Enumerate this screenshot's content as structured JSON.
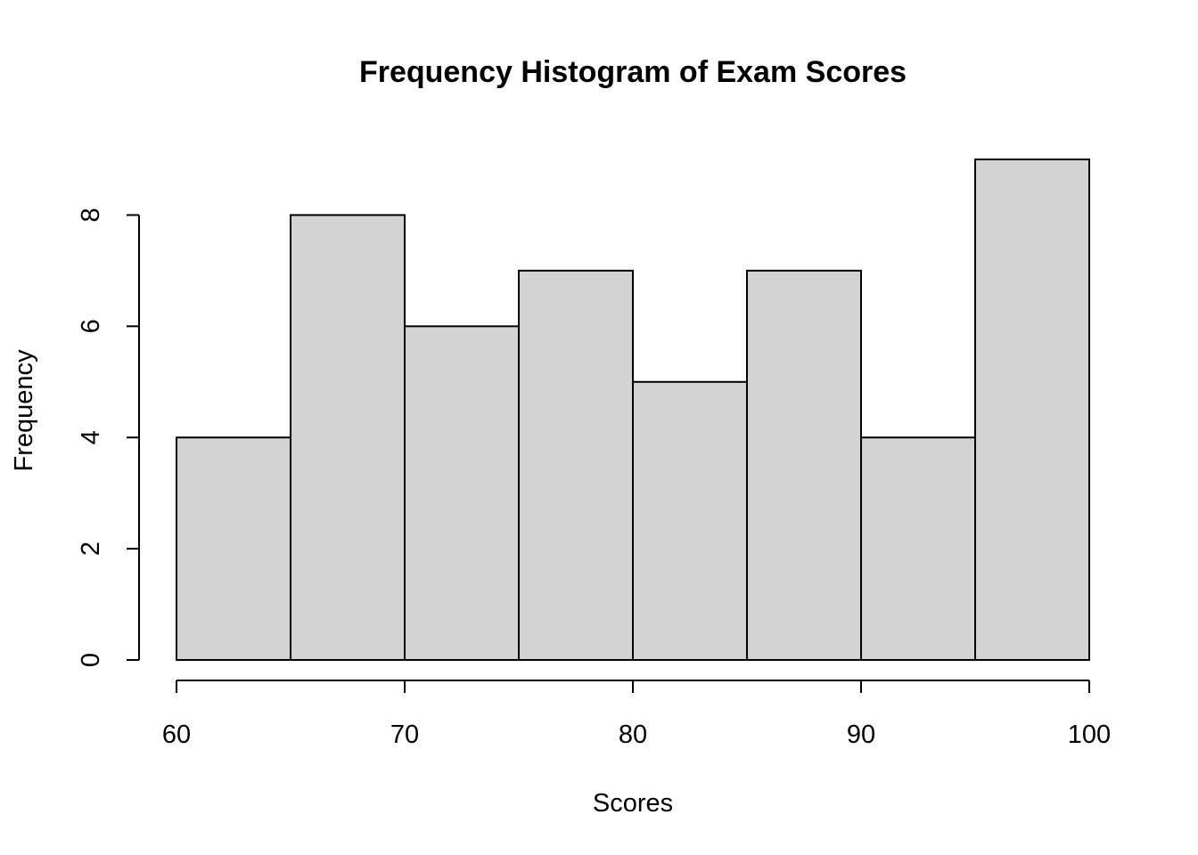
{
  "chart_data": {
    "type": "bar",
    "title": "Frequency Histogram of Exam Scores",
    "xlabel": "Scores",
    "ylabel": "Frequency",
    "bins": [
      {
        "start": 60,
        "end": 65,
        "count": 4
      },
      {
        "start": 65,
        "end": 70,
        "count": 8
      },
      {
        "start": 70,
        "end": 75,
        "count": 6
      },
      {
        "start": 75,
        "end": 80,
        "count": 7
      },
      {
        "start": 80,
        "end": 85,
        "count": 5
      },
      {
        "start": 85,
        "end": 90,
        "count": 7
      },
      {
        "start": 90,
        "end": 95,
        "count": 4
      },
      {
        "start": 95,
        "end": 100,
        "count": 9
      }
    ],
    "x_ticks": [
      60,
      70,
      80,
      90,
      100
    ],
    "y_ticks": [
      0,
      2,
      4,
      6,
      8
    ],
    "xlim": [
      60,
      100
    ],
    "ylim": [
      0,
      9
    ],
    "bar_fill": "#d3d3d3",
    "bar_stroke": "#000000",
    "grid": false,
    "legend": "none"
  }
}
